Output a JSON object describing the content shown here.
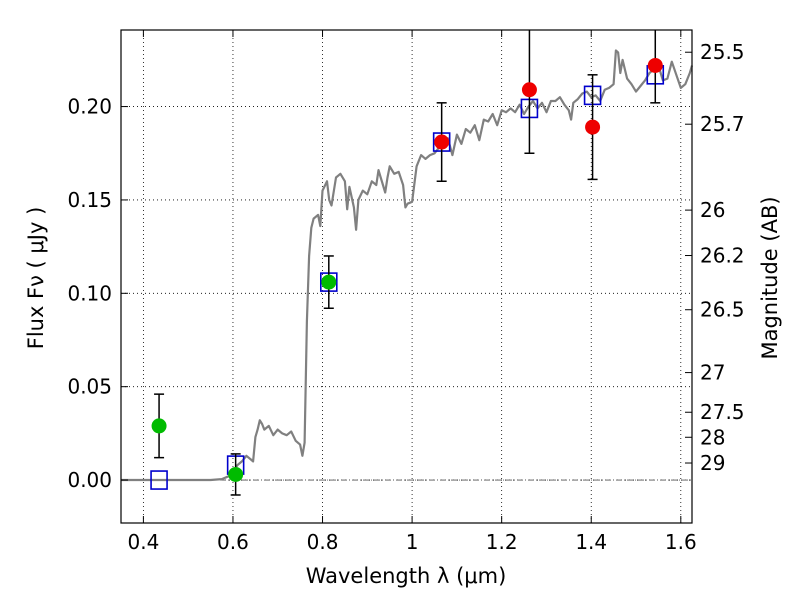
{
  "chart_data": {
    "type": "scatter",
    "xlabel": "Wavelength  λ (μm)",
    "ylabel": "Flux  Fν  ( μJy )",
    "ylabel_right": "Magnitude (AB)",
    "xlim": [
      0.35,
      1.625
    ],
    "ylim": [
      -0.023,
      0.241
    ],
    "x_ticks": [
      0.4,
      0.6,
      0.8,
      1.0,
      1.2,
      1.4,
      1.6
    ],
    "x_tick_labels": [
      "0.4",
      "0.6",
      "0.8",
      "1",
      "1.2",
      "1.4",
      "1.6"
    ],
    "y_ticks": [
      0.0,
      0.05,
      0.1,
      0.15,
      0.2
    ],
    "y_tick_labels": [
      "0.00",
      "0.05",
      "0.10",
      "0.15",
      "0.20"
    ],
    "right_ticks": [
      {
        "label": "25.5",
        "mag": 25.5
      },
      {
        "label": "25.7",
        "mag": 25.7
      },
      {
        "label": "26",
        "mag": 26.0
      },
      {
        "label": "26.2",
        "mag": 26.2
      },
      {
        "label": "26.5",
        "mag": 26.5
      },
      {
        "label": "27",
        "mag": 27.0
      },
      {
        "label": "27.5",
        "mag": 27.5
      },
      {
        "label": "28",
        "mag": 28.0
      },
      {
        "label": "29",
        "mag": 29.0
      }
    ],
    "grid": true,
    "zero_line": true,
    "colors": {
      "model_line": "#808080",
      "green_points": "#00bb00",
      "red_points": "#ee0000",
      "model_squares": "#0000cc",
      "errorbar": "#000000"
    },
    "model_spectrum": [
      [
        0.35,
        0.0
      ],
      [
        0.45,
        0.0
      ],
      [
        0.55,
        0.0
      ],
      [
        0.575,
        0.0005
      ],
      [
        0.59,
        0.002
      ],
      [
        0.6,
        0.004
      ],
      [
        0.61,
        0.008
      ],
      [
        0.62,
        0.01
      ],
      [
        0.63,
        0.013
      ],
      [
        0.64,
        0.011
      ],
      [
        0.645,
        0.01
      ],
      [
        0.65,
        0.023
      ],
      [
        0.655,
        0.027
      ],
      [
        0.66,
        0.032
      ],
      [
        0.665,
        0.03
      ],
      [
        0.67,
        0.027
      ],
      [
        0.68,
        0.029
      ],
      [
        0.69,
        0.024
      ],
      [
        0.7,
        0.027
      ],
      [
        0.71,
        0.025
      ],
      [
        0.72,
        0.024
      ],
      [
        0.73,
        0.026
      ],
      [
        0.74,
        0.021
      ],
      [
        0.75,
        0.019
      ],
      [
        0.755,
        0.013
      ],
      [
        0.76,
        0.02
      ],
      [
        0.765,
        0.085
      ],
      [
        0.77,
        0.12
      ],
      [
        0.775,
        0.135
      ],
      [
        0.78,
        0.14
      ],
      [
        0.79,
        0.142
      ],
      [
        0.795,
        0.136
      ],
      [
        0.8,
        0.155
      ],
      [
        0.81,
        0.16
      ],
      [
        0.815,
        0.15
      ],
      [
        0.82,
        0.147
      ],
      [
        0.83,
        0.162
      ],
      [
        0.84,
        0.164
      ],
      [
        0.85,
        0.16
      ],
      [
        0.855,
        0.145
      ],
      [
        0.86,
        0.157
      ],
      [
        0.87,
        0.146
      ],
      [
        0.875,
        0.134
      ],
      [
        0.88,
        0.15
      ],
      [
        0.89,
        0.155
      ],
      [
        0.9,
        0.153
      ],
      [
        0.91,
        0.16
      ],
      [
        0.92,
        0.158
      ],
      [
        0.925,
        0.166
      ],
      [
        0.93,
        0.162
      ],
      [
        0.94,
        0.154
      ],
      [
        0.945,
        0.162
      ],
      [
        0.95,
        0.168
      ],
      [
        0.96,
        0.164
      ],
      [
        0.97,
        0.165
      ],
      [
        0.98,
        0.158
      ],
      [
        0.985,
        0.146
      ],
      [
        0.99,
        0.148
      ],
      [
        1.0,
        0.149
      ],
      [
        1.01,
        0.168
      ],
      [
        1.02,
        0.174
      ],
      [
        1.03,
        0.172
      ],
      [
        1.04,
        0.174
      ],
      [
        1.05,
        0.175
      ],
      [
        1.06,
        0.178
      ],
      [
        1.07,
        0.18
      ],
      [
        1.08,
        0.183
      ],
      [
        1.09,
        0.174
      ],
      [
        1.1,
        0.185
      ],
      [
        1.11,
        0.18
      ],
      [
        1.12,
        0.188
      ],
      [
        1.13,
        0.186
      ],
      [
        1.14,
        0.19
      ],
      [
        1.15,
        0.182
      ],
      [
        1.16,
        0.193
      ],
      [
        1.17,
        0.192
      ],
      [
        1.18,
        0.196
      ],
      [
        1.19,
        0.19
      ],
      [
        1.2,
        0.198
      ],
      [
        1.21,
        0.197
      ],
      [
        1.22,
        0.199
      ],
      [
        1.23,
        0.197
      ],
      [
        1.24,
        0.201
      ],
      [
        1.25,
        0.196
      ],
      [
        1.26,
        0.2
      ],
      [
        1.27,
        0.203
      ],
      [
        1.28,
        0.199
      ],
      [
        1.29,
        0.202
      ],
      [
        1.3,
        0.197
      ],
      [
        1.31,
        0.203
      ],
      [
        1.32,
        0.203
      ],
      [
        1.33,
        0.205
      ],
      [
        1.34,
        0.201
      ],
      [
        1.35,
        0.198
      ],
      [
        1.355,
        0.193
      ],
      [
        1.36,
        0.202
      ],
      [
        1.37,
        0.204
      ],
      [
        1.38,
        0.207
      ],
      [
        1.39,
        0.208
      ],
      [
        1.4,
        0.205
      ],
      [
        1.41,
        0.206
      ],
      [
        1.42,
        0.203
      ],
      [
        1.43,
        0.209
      ],
      [
        1.44,
        0.21
      ],
      [
        1.45,
        0.212
      ],
      [
        1.455,
        0.23
      ],
      [
        1.46,
        0.229
      ],
      [
        1.465,
        0.218
      ],
      [
        1.47,
        0.225
      ],
      [
        1.48,
        0.215
      ],
      [
        1.49,
        0.212
      ],
      [
        1.5,
        0.208
      ],
      [
        1.51,
        0.211
      ],
      [
        1.52,
        0.214
      ],
      [
        1.53,
        0.218
      ],
      [
        1.54,
        0.22
      ],
      [
        1.55,
        0.222
      ],
      [
        1.56,
        0.214
      ],
      [
        1.57,
        0.215
      ],
      [
        1.58,
        0.224
      ],
      [
        1.59,
        0.217
      ],
      [
        1.6,
        0.21
      ],
      [
        1.61,
        0.212
      ],
      [
        1.62,
        0.218
      ],
      [
        1.625,
        0.222
      ]
    ],
    "model_squares": [
      {
        "x": 0.435,
        "y": 0.0
      },
      {
        "x": 0.606,
        "y": 0.008
      },
      {
        "x": 0.814,
        "y": 0.106
      },
      {
        "x": 1.066,
        "y": 0.181
      },
      {
        "x": 1.262,
        "y": 0.199
      },
      {
        "x": 1.403,
        "y": 0.206
      },
      {
        "x": 1.543,
        "y": 0.217
      }
    ],
    "green_points": [
      {
        "x": 0.435,
        "y": 0.029,
        "err": 0.017
      },
      {
        "x": 0.606,
        "y": 0.003,
        "err": 0.011
      },
      {
        "x": 0.814,
        "y": 0.106,
        "err": 0.014
      }
    ],
    "red_points": [
      {
        "x": 1.066,
        "y": 0.181,
        "err": 0.021
      },
      {
        "x": 1.262,
        "y": 0.209,
        "err": 0.034
      },
      {
        "x": 1.403,
        "y": 0.189,
        "err": 0.028
      },
      {
        "x": 1.543,
        "y": 0.222,
        "err": 0.02
      }
    ]
  }
}
